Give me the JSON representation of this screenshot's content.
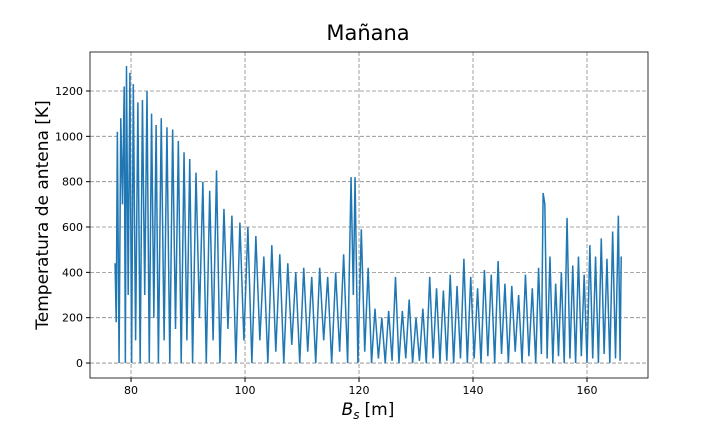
{
  "chart_data": {
    "type": "line",
    "title": "Mañana",
    "xlabel": {
      "base": "B",
      "sub": "s",
      "unit": "[m]"
    },
    "ylabel": "Temperatura de antena [K]",
    "xlim": [
      72.8,
      170.7
    ],
    "ylim": [
      -66,
      1372
    ],
    "xticks": [
      80,
      100,
      120,
      140,
      160
    ],
    "yticks": [
      0,
      200,
      400,
      600,
      800,
      1000,
      1200
    ],
    "grid": true,
    "series": [
      {
        "color": "#1f77b4",
        "x": [
          77.2,
          77.4,
          77.6,
          77.9,
          78.2,
          78.5,
          78.8,
          79.0,
          79.2,
          79.5,
          79.8,
          80.1,
          80.4,
          80.8,
          81.2,
          81.6,
          82.0,
          82.4,
          82.8,
          83.2,
          83.6,
          84.0,
          84.4,
          84.8,
          85.3,
          85.8,
          86.3,
          86.8,
          87.3,
          87.8,
          88.3,
          88.8,
          89.3,
          89.8,
          90.3,
          90.8,
          91.4,
          92.0,
          92.6,
          93.2,
          93.8,
          94.4,
          95.0,
          95.6,
          96.3,
          97.0,
          97.7,
          98.4,
          99.1,
          99.8,
          100.5,
          101.2,
          101.9,
          102.6,
          103.3,
          104.0,
          104.7,
          105.4,
          106.1,
          106.8,
          107.5,
          108.2,
          108.9,
          109.6,
          110.3,
          111.0,
          111.7,
          112.4,
          113.1,
          113.8,
          114.5,
          115.2,
          115.9,
          116.6,
          117.3,
          118.0,
          118.6,
          119.0,
          119.3,
          119.8,
          120.4,
          121.0,
          121.6,
          122.2,
          122.8,
          123.4,
          124.0,
          124.6,
          125.2,
          125.8,
          126.4,
          127.0,
          127.6,
          128.2,
          128.8,
          129.4,
          130.0,
          130.6,
          131.2,
          131.8,
          132.4,
          133.0,
          133.6,
          134.2,
          134.8,
          135.4,
          136.0,
          136.6,
          137.2,
          137.8,
          138.4,
          139.0,
          139.6,
          140.2,
          140.8,
          141.4,
          142.0,
          142.6,
          143.2,
          143.8,
          144.4,
          145.0,
          145.6,
          146.2,
          146.8,
          147.4,
          148.0,
          148.6,
          149.2,
          149.8,
          150.4,
          151.0,
          151.5,
          152.0,
          152.3,
          152.6,
          153.0,
          153.5,
          154.0,
          154.5,
          155.0,
          155.5,
          156.0,
          156.5,
          157.0,
          157.5,
          158.0,
          158.5,
          159.0,
          159.5,
          160.0,
          160.5,
          161.0,
          161.5,
          162.0,
          162.5,
          163.0,
          163.5,
          164.0,
          164.5,
          165.0,
          165.5,
          165.8,
          166.0
        ],
        "values": [
          440,
          180,
          1020,
          0,
          1080,
          700,
          1220,
          0,
          1310,
          300,
          1280,
          0,
          1230,
          100,
          1150,
          0,
          1160,
          300,
          1200,
          0,
          1100,
          200,
          1050,
          0,
          1080,
          100,
          1040,
          0,
          1030,
          150,
          980,
          0,
          930,
          100,
          900,
          0,
          840,
          200,
          800,
          0,
          760,
          100,
          850,
          0,
          680,
          150,
          650,
          0,
          620,
          100,
          600,
          0,
          560,
          100,
          470,
          0,
          520,
          50,
          480,
          0,
          440,
          80,
          400,
          0,
          420,
          50,
          380,
          0,
          420,
          100,
          380,
          0,
          400,
          50,
          480,
          0,
          820,
          300,
          820,
          0,
          590,
          50,
          420,
          0,
          240,
          20,
          200,
          0,
          230,
          10,
          380,
          0,
          230,
          20,
          280,
          0,
          200,
          10,
          240,
          0,
          380,
          20,
          330,
          0,
          320,
          10,
          390,
          0,
          340,
          20,
          460,
          0,
          380,
          20,
          330,
          0,
          410,
          30,
          390,
          0,
          450,
          40,
          350,
          0,
          340,
          50,
          300,
          0,
          390,
          30,
          330,
          0,
          420,
          40,
          750,
          700,
          20,
          470,
          0,
          350,
          30,
          400,
          0,
          640,
          20,
          430,
          0,
          470,
          30,
          390,
          0,
          520,
          20,
          470,
          0,
          550,
          40,
          460,
          0,
          580,
          20,
          650,
          10,
          470
        ]
      }
    ]
  }
}
